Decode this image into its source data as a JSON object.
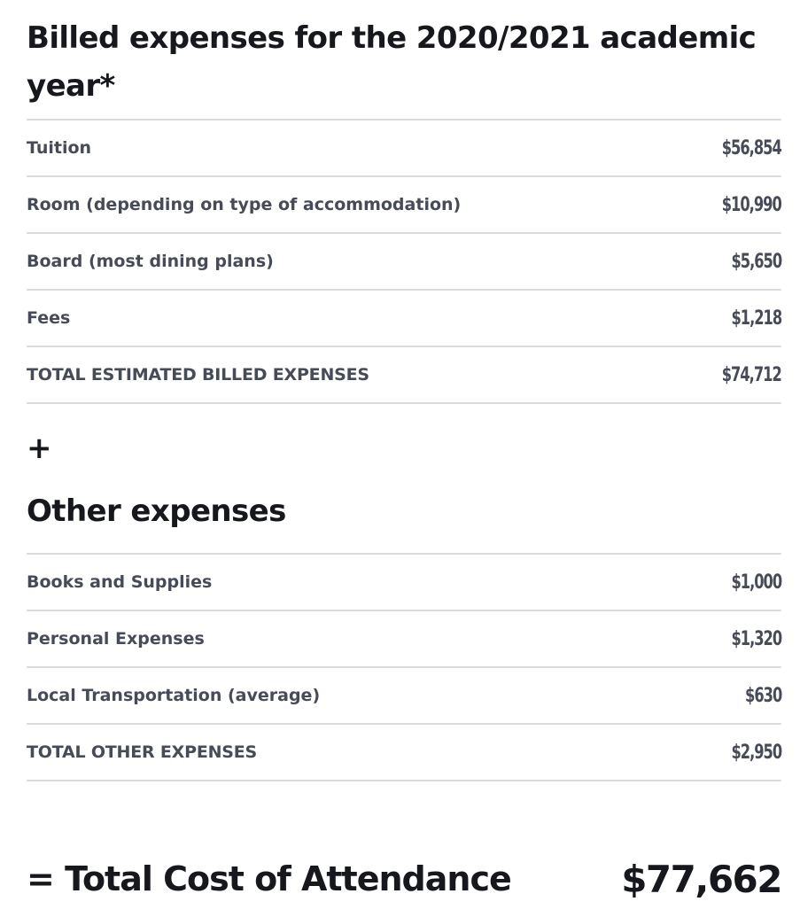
{
  "billed": {
    "title": "Billed expenses for the 2020/2021 academic year*",
    "rows": [
      {
        "label": "Tuition",
        "amount": "$56,854"
      },
      {
        "label": "Room (depending on type of accommodation)",
        "amount": "$10,990"
      },
      {
        "label": "Board (most dining plans)",
        "amount": "$5,650"
      },
      {
        "label": "Fees",
        "amount": "$1,218"
      }
    ],
    "total": {
      "label": "TOTAL ESTIMATED BILLED EXPENSES",
      "amount": "$74,712"
    }
  },
  "plus_sign": "+",
  "other": {
    "title": "Other expenses",
    "rows": [
      {
        "label": "Books and Supplies",
        "amount": "$1,000"
      },
      {
        "label": "Personal Expenses",
        "amount": "$1,320"
      },
      {
        "label": "Local Transportation (average)",
        "amount": "$630"
      }
    ],
    "total": {
      "label": "TOTAL OTHER EXPENSES",
      "amount": "$2,950"
    }
  },
  "grand_total": {
    "label": "= Total Cost of Attendance",
    "amount": "$77,662"
  }
}
